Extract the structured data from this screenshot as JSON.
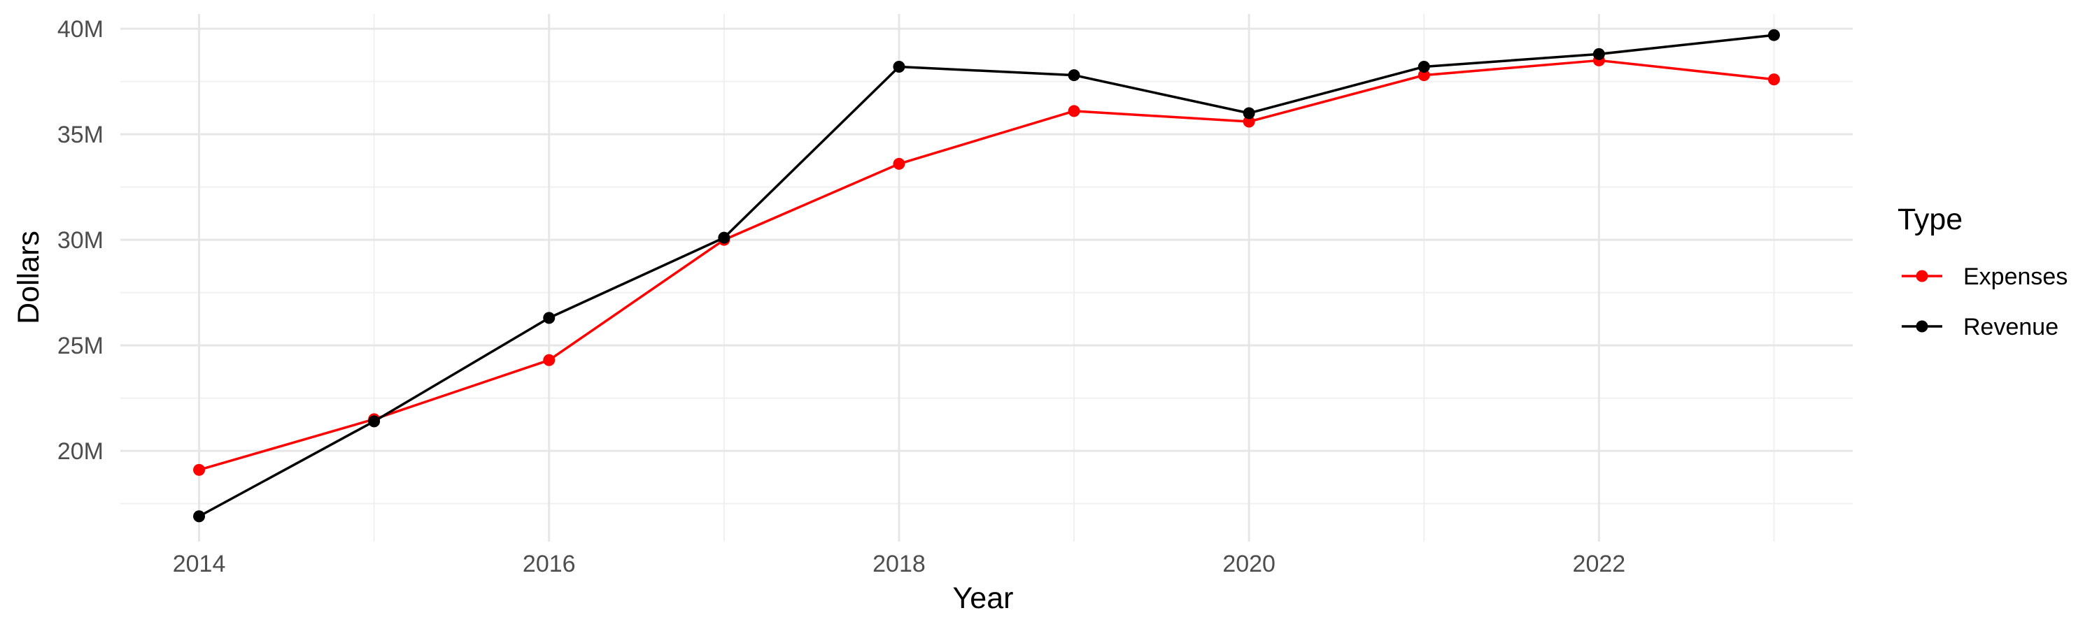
{
  "chart_data": {
    "type": "line",
    "title": "",
    "xlabel": "Year",
    "ylabel": "Dollars",
    "x": [
      2014,
      2015,
      2016,
      2017,
      2018,
      2019,
      2020,
      2021,
      2022,
      2023
    ],
    "x_ticks": [
      "2014",
      "2016",
      "2018",
      "2020",
      "2022"
    ],
    "y_ticks": [
      "20M",
      "25M",
      "30M",
      "35M",
      "40M"
    ],
    "y_tick_values": [
      20,
      25,
      30,
      35,
      40
    ],
    "x_tick_values": [
      2014,
      2016,
      2018,
      2020,
      2022
    ],
    "xlim": [
      2013.55,
      2023.45
    ],
    "ylim": [
      15.7,
      40.7
    ],
    "y_unit": "millions",
    "grid": true,
    "legend": {
      "title": "Type",
      "position": "right"
    },
    "series": [
      {
        "name": "Expenses",
        "color": "#ff0000",
        "values": [
          19.1,
          21.5,
          24.3,
          30.0,
          33.6,
          36.1,
          35.6,
          37.8,
          38.5,
          37.6
        ]
      },
      {
        "name": "Revenue",
        "color": "#000000",
        "values": [
          16.9,
          21.4,
          26.3,
          30.1,
          38.2,
          37.8,
          36.0,
          38.2,
          38.8,
          39.7
        ]
      }
    ]
  }
}
